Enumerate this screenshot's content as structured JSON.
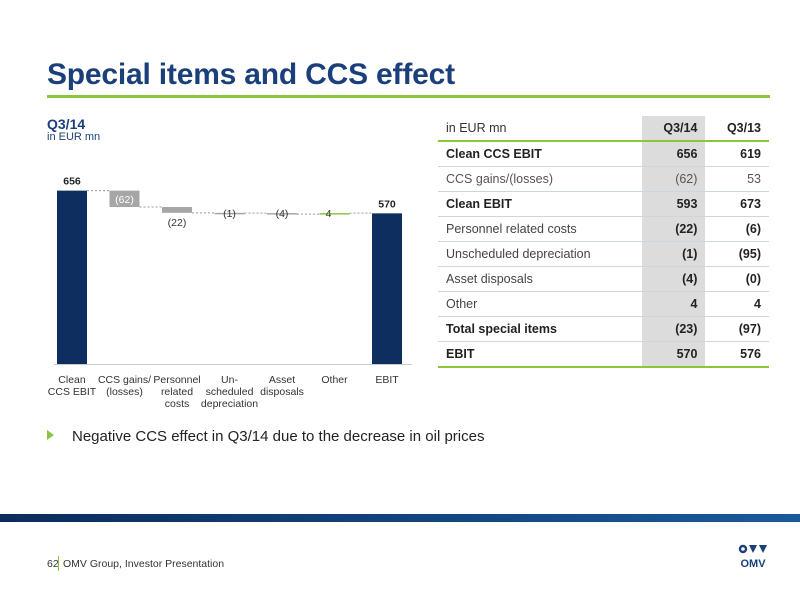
{
  "title": "Special items and CCS effect",
  "chart": {
    "heading": "Q3/14",
    "unit": "in EUR mn"
  },
  "chart_data": {
    "type": "bar",
    "subtype": "waterfall",
    "categories": [
      "Clean\nCCS EBIT",
      "CCS gains/\n(losses)",
      "Personnel\nrelated\ncosts",
      "Un-\nscheduled\ndepreciation",
      "Asset\ndisposals",
      "Other",
      "EBIT"
    ],
    "values": [
      656,
      -62,
      -22,
      -1,
      -4,
      4,
      570
    ],
    "value_labels": [
      "656",
      "(62)",
      "(22)",
      "(1)",
      "(4)",
      "4",
      "570"
    ],
    "kinds": [
      "total",
      "delta",
      "delta",
      "delta",
      "delta",
      "delta",
      "total"
    ],
    "ylim": [
      0,
      700
    ],
    "grid": false,
    "colors": {
      "total": "#0d2e5e",
      "negative": "#a6a6a6",
      "positive": "#8cc63f",
      "connector": "#999999"
    }
  },
  "table": {
    "header": [
      "in EUR mn",
      "Q3/14",
      "Q3/13"
    ],
    "rows": [
      {
        "label": "Clean CCS EBIT",
        "q314": "656",
        "q313": "619",
        "style": "bold"
      },
      {
        "label": "CCS gains/(losses)",
        "q314": "(62)",
        "q313": "53",
        "style": "light"
      },
      {
        "label": "Clean EBIT",
        "q314": "593",
        "q313": "673",
        "style": "bold"
      },
      {
        "label": "Personnel related costs",
        "q314": "(22)",
        "q313": "(6)",
        "style": "mixed"
      },
      {
        "label": "Unscheduled depreciation",
        "q314": "(1)",
        "q313": "(95)",
        "style": "mixed"
      },
      {
        "label": "Asset disposals",
        "q314": "(4)",
        "q313": "(0)",
        "style": "mixed"
      },
      {
        "label": "Other",
        "q314": "4",
        "q313": "4",
        "style": "mixed"
      },
      {
        "label": "Total special items",
        "q314": "(23)",
        "q313": "(97)",
        "style": "bold"
      },
      {
        "label": "EBIT",
        "q314": "570",
        "q313": "576",
        "style": "bold"
      }
    ]
  },
  "bullets": [
    "Negative CCS effect in Q3/14 due to the decrease in oil prices"
  ],
  "footer": {
    "page": "62",
    "text": "OMV Group, Investor Presentation",
    "logo_text": "OMV"
  },
  "colors": {
    "title": "#1a3f7a",
    "accent": "#8cc63f",
    "footer_band": "#0b2c5e"
  }
}
